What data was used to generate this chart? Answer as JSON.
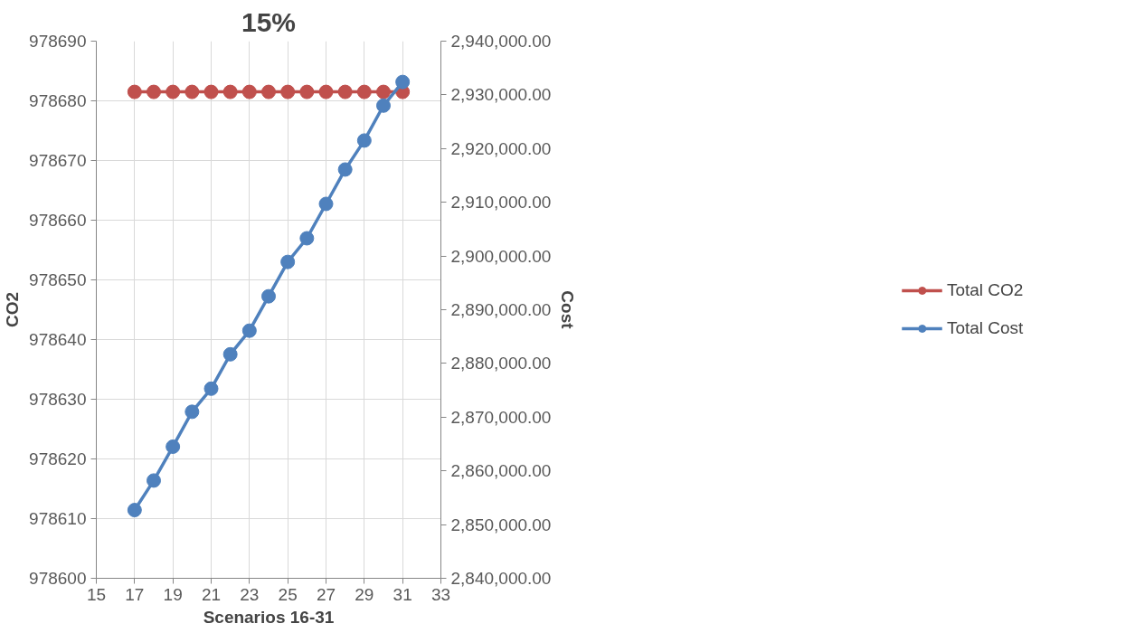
{
  "chart_data": {
    "type": "line",
    "title": "15%",
    "xlabel": "Scenarios 16-31",
    "ylabel": "CO2",
    "y2label": "Cost",
    "x": [
      17,
      18,
      19,
      20,
      21,
      22,
      23,
      24,
      25,
      26,
      27,
      28,
      29,
      30,
      31
    ],
    "series": [
      {
        "name": "Total CO2",
        "color": "#c0504d",
        "values": [
          978681.5,
          978681.5,
          978681.5,
          978681.5,
          978681.5,
          978681.5,
          978681.5,
          978681.5,
          978681.5,
          978681.5,
          978681.5,
          978681.5,
          978681.5,
          978681.5,
          978681.5
        ]
      },
      {
        "name": "Total Cost",
        "color": "#4f81bd",
        "axis": "y2",
        "values": [
          2852700,
          2858200,
          2864500,
          2871000,
          2875300,
          2881700,
          2886100,
          2892500,
          2898900,
          2903300,
          2909700,
          2916100,
          2921500,
          2928000,
          2932400
        ]
      }
    ],
    "xlim": [
      15,
      33
    ],
    "xticks": [
      15,
      17,
      19,
      21,
      23,
      25,
      27,
      29,
      31,
      33
    ],
    "ylim": [
      978600,
      978690
    ],
    "yticks": [
      978600,
      978610,
      978620,
      978630,
      978640,
      978650,
      978660,
      978670,
      978680,
      978690
    ],
    "y2lim": [
      2840000,
      2940000
    ],
    "y2ticks": [
      {
        "value": 2840000,
        "label": "2,840,000.00"
      },
      {
        "value": 2850000,
        "label": "2,850,000.00"
      },
      {
        "value": 2860000,
        "label": "2,860,000.00"
      },
      {
        "value": 2870000,
        "label": "2,870,000.00"
      },
      {
        "value": 2880000,
        "label": "2,880,000.00"
      },
      {
        "value": 2890000,
        "label": "2,890,000.00"
      },
      {
        "value": 2900000,
        "label": "2,900,000.00"
      },
      {
        "value": 2910000,
        "label": "2,910,000.00"
      },
      {
        "value": 2920000,
        "label": "2,920,000.00"
      },
      {
        "value": 2930000,
        "label": "2,930,000.00"
      },
      {
        "value": 2940000,
        "label": "2,940,000.00"
      }
    ],
    "grid": true,
    "legend": "right",
    "marker": "circle",
    "line_style": "solid"
  }
}
